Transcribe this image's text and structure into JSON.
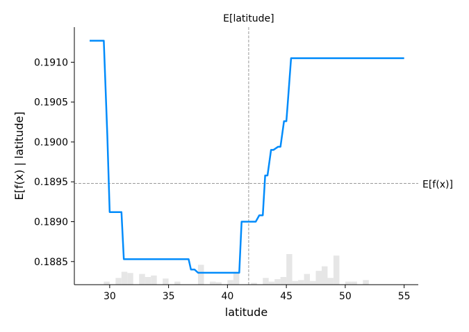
{
  "chart_data": {
    "type": "line",
    "title": "",
    "xlabel": "latitude",
    "ylabel": "E[f(x) | latitude]",
    "xlim": [
      27.0,
      56.2
    ],
    "ylim": [
      0.18821,
      0.19144
    ],
    "xticks": [
      30,
      35,
      40,
      45,
      50,
      55
    ],
    "xtick_labels": [
      "30",
      "35",
      "40",
      "45",
      "50",
      "55"
    ],
    "yticks": [
      0.1885,
      0.189,
      0.1895,
      0.19,
      0.1905,
      0.191
    ],
    "ytick_labels": [
      "0.1885",
      "0.1890",
      "0.1895",
      "0.1900",
      "0.1905",
      "0.1910"
    ],
    "grid": false,
    "line_color": "#008bfb",
    "hist_color": "#e6e6e6",
    "ref_line_color": "#999999",
    "vertical_ref": {
      "label": "E[latitude]",
      "x": 41.8
    },
    "horizontal_ref": {
      "label": "E[f(x)]",
      "y": 0.18948
    },
    "series": [
      {
        "x": [
          28.3,
          29.5,
          29.8,
          30.0,
          31.0,
          31.2,
          36.7,
          36.9,
          37.2,
          37.5,
          41.0,
          41.2,
          42.4,
          42.7,
          43.0,
          43.2,
          43.4,
          43.7,
          43.9,
          44.3,
          44.5,
          44.8,
          45.0,
          45.1,
          45.4,
          45.6,
          55.0
        ],
        "y": [
          0.19127,
          0.19127,
          0.19008,
          0.18912,
          0.18912,
          0.18853,
          0.18853,
          0.1884,
          0.1884,
          0.18836,
          0.18836,
          0.189,
          0.189,
          0.18908,
          0.18908,
          0.18958,
          0.18958,
          0.1899,
          0.1899,
          0.18994,
          0.18994,
          0.19026,
          0.19026,
          0.19045,
          0.19105,
          0.19105,
          0.19105
        ]
      }
    ],
    "histogram": {
      "bin_width": 0.5,
      "bin_starts": [
        29.5,
        30.5,
        31.0,
        31.5,
        32.5,
        33.0,
        33.5,
        34.5,
        35.5,
        37.5,
        38.5,
        39.0,
        40.0,
        40.5,
        42.0,
        43.0,
        43.5,
        44.0,
        44.5,
        45.0,
        45.5,
        46.0,
        46.5,
        47.0,
        47.5,
        48.0,
        48.5,
        49.0,
        50.0,
        50.5,
        51.5
      ],
      "heights": [
        0.1,
        0.22,
        0.42,
        0.38,
        0.35,
        0.25,
        0.3,
        0.2,
        0.1,
        0.65,
        0.1,
        0.08,
        0.15,
        0.42,
        0.06,
        0.22,
        0.1,
        0.18,
        0.25,
        1.0,
        0.12,
        0.15,
        0.35,
        0.12,
        0.45,
        0.6,
        0.22,
        0.95,
        0.1,
        0.1,
        0.15
      ]
    }
  }
}
